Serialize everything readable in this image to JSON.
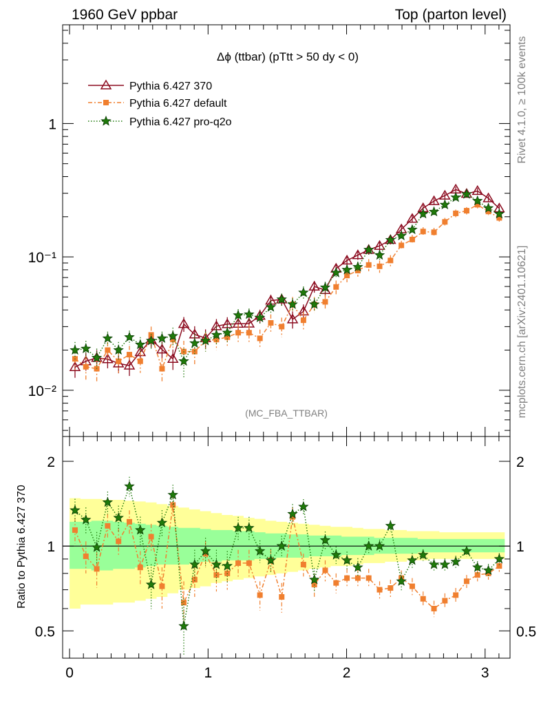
{
  "header": {
    "left": "1960 GeV ppbar",
    "right": "Top (parton level)"
  },
  "side": {
    "top": "Rivet 4.1.0, ≥ 100k events",
    "bottom": "mcplots.cern.ch [arXiv:2401.10621]"
  },
  "colors": {
    "p370": "#8b0a1e",
    "default": "#f07f2f",
    "proq2o": "#1f7a0a",
    "band_outer": "#ffff99",
    "band_inner": "#99ff99"
  },
  "chart_data": {
    "type": "line",
    "title": "Δϕ (ttbar) (pTtt > 50 dy < 0)",
    "watermark": "(MC_FBA_TTBAR)",
    "xlabel": "",
    "ylabel_main": "",
    "ylabel_ratio": "Ratio to Pythia 6.427 370",
    "xlim": [
      -0.05,
      3.18
    ],
    "ylim_main": [
      0.0045,
      5.5
    ],
    "ylim_ratio": [
      0.4,
      2.45
    ],
    "yscale_main": "log",
    "yscale_ratio": "log",
    "xticks": [
      "0",
      "1",
      "2",
      "3"
    ],
    "yticks_main": [
      "10⁻²",
      "10⁻¹",
      "1"
    ],
    "yticks_ratio": [
      "0.5",
      "1",
      "2"
    ],
    "legend": [
      "Pythia 6.427 370",
      "Pythia 6.427 default",
      "Pythia 6.427 pro-q2o"
    ],
    "legend_position": "top-left",
    "x": [
      0.0393,
      0.1178,
      0.1963,
      0.2749,
      0.3534,
      0.432,
      0.5105,
      0.589,
      0.6676,
      0.7461,
      0.8247,
      0.9032,
      0.9817,
      1.0603,
      1.1388,
      1.2174,
      1.2959,
      1.3744,
      1.453,
      1.5315,
      1.6101,
      1.6886,
      1.7671,
      1.8457,
      1.9242,
      2.0028,
      2.0813,
      2.1598,
      2.2384,
      2.3169,
      2.3955,
      2.474,
      2.5525,
      2.6311,
      2.7096,
      2.7882,
      2.8667,
      2.9452,
      3.0238,
      3.1023
    ],
    "series": [
      {
        "name": "Pythia 6.427 370",
        "values": [
          0.0149,
          0.0165,
          0.0175,
          0.0171,
          0.0159,
          0.0153,
          0.0193,
          0.0239,
          0.0202,
          0.0172,
          0.0314,
          0.0262,
          0.0246,
          0.0302,
          0.0313,
          0.0315,
          0.0316,
          0.0362,
          0.047,
          0.048,
          0.034,
          0.039,
          0.0599,
          0.0564,
          0.0817,
          0.094,
          0.103,
          0.113,
          0.121,
          0.134,
          0.161,
          0.193,
          0.232,
          0.262,
          0.288,
          0.32,
          0.297,
          0.312,
          0.275,
          0.231
        ],
        "errors": [
          0.0025,
          0.0025,
          0.0025,
          0.0025,
          0.0025,
          0.0025,
          0.0025,
          0.003,
          0.003,
          0.003,
          0.004,
          0.004,
          0.004,
          0.004,
          0.004,
          0.004,
          0.004,
          0.004,
          0.005,
          0.005,
          0.005,
          0.005,
          0.006,
          0.006,
          0.007,
          0.008,
          0.008,
          0.009,
          0.009,
          0.01,
          0.011,
          0.012,
          0.013,
          0.014,
          0.015,
          0.016,
          0.015,
          0.016,
          0.014,
          0.012
        ]
      },
      {
        "name": "Pythia 6.427 default",
        "values": [
          0.0172,
          0.015,
          0.0145,
          0.02,
          0.0165,
          0.0185,
          0.0165,
          0.026,
          0.0145,
          0.024,
          0.0195,
          0.0195,
          0.0235,
          0.024,
          0.025,
          0.027,
          0.027,
          0.0245,
          0.032,
          0.03,
          0.044,
          0.0335,
          0.044,
          0.046,
          0.0595,
          0.0725,
          0.079,
          0.087,
          0.085,
          0.094,
          0.122,
          0.135,
          0.155,
          0.153,
          0.183,
          0.212,
          0.222,
          0.246,
          0.219,
          0.196
        ],
        "errors": [
          0.003,
          0.003,
          0.003,
          0.003,
          0.003,
          0.003,
          0.003,
          0.004,
          0.003,
          0.004,
          0.004,
          0.004,
          0.004,
          0.004,
          0.004,
          0.004,
          0.004,
          0.004,
          0.005,
          0.005,
          0.006,
          0.005,
          0.006,
          0.006,
          0.007,
          0.008,
          0.008,
          0.009,
          0.009,
          0.009,
          0.01,
          0.011,
          0.012,
          0.012,
          0.013,
          0.014,
          0.014,
          0.015,
          0.013,
          0.012
        ]
      },
      {
        "name": "Pythia 6.427 pro-q2o",
        "values": [
          0.02,
          0.0205,
          0.0175,
          0.0245,
          0.02,
          0.025,
          0.022,
          0.0235,
          0.0245,
          0.0255,
          0.0165,
          0.0225,
          0.0235,
          0.026,
          0.027,
          0.0365,
          0.037,
          0.035,
          0.042,
          0.048,
          0.044,
          0.054,
          0.044,
          0.059,
          0.076,
          0.08,
          0.084,
          0.113,
          0.103,
          0.134,
          0.144,
          0.16,
          0.21,
          0.218,
          0.246,
          0.279,
          0.295,
          0.263,
          0.232,
          0.21
        ],
        "errors": [
          0.003,
          0.003,
          0.003,
          0.003,
          0.003,
          0.003,
          0.003,
          0.003,
          0.003,
          0.004,
          0.004,
          0.004,
          0.004,
          0.004,
          0.004,
          0.004,
          0.004,
          0.004,
          0.005,
          0.005,
          0.005,
          0.006,
          0.005,
          0.006,
          0.007,
          0.007,
          0.008,
          0.009,
          0.009,
          0.01,
          0.01,
          0.011,
          0.012,
          0.012,
          0.013,
          0.014,
          0.015,
          0.014,
          0.012,
          0.011
        ]
      }
    ],
    "ratio_band": {
      "inner_lo": [
        0.83,
        0.83,
        0.82,
        0.82,
        0.83,
        0.83,
        0.84,
        0.85,
        0.86,
        0.86,
        0.86,
        0.87,
        0.88,
        0.88,
        0.89,
        0.89,
        0.89,
        0.9,
        0.9,
        0.91,
        0.91,
        0.91,
        0.92,
        0.92,
        0.92,
        0.93,
        0.93,
        0.93,
        0.94,
        0.94,
        0.94,
        0.94,
        0.95,
        0.95,
        0.95,
        0.95,
        0.95,
        0.95,
        0.95,
        0.95
      ],
      "inner_hi": [
        1.22,
        1.22,
        1.23,
        1.23,
        1.22,
        1.21,
        1.2,
        1.19,
        1.18,
        1.17,
        1.16,
        1.16,
        1.15,
        1.14,
        1.14,
        1.13,
        1.13,
        1.12,
        1.11,
        1.11,
        1.1,
        1.1,
        1.09,
        1.09,
        1.09,
        1.08,
        1.08,
        1.08,
        1.07,
        1.07,
        1.07,
        1.07,
        1.06,
        1.06,
        1.06,
        1.06,
        1.06,
        1.06,
        1.06,
        1.06
      ],
      "outer_lo": [
        0.6,
        0.62,
        0.62,
        0.62,
        0.63,
        0.63,
        0.64,
        0.65,
        0.66,
        0.68,
        0.7,
        0.71,
        0.72,
        0.74,
        0.75,
        0.76,
        0.77,
        0.78,
        0.79,
        0.8,
        0.81,
        0.82,
        0.83,
        0.84,
        0.85,
        0.85,
        0.86,
        0.87,
        0.87,
        0.88,
        0.88,
        0.89,
        0.89,
        0.9,
        0.9,
        0.9,
        0.9,
        0.9,
        0.9,
        0.9
      ],
      "outer_hi": [
        1.48,
        1.47,
        1.47,
        1.46,
        1.46,
        1.45,
        1.44,
        1.43,
        1.41,
        1.39,
        1.37,
        1.35,
        1.33,
        1.31,
        1.29,
        1.28,
        1.26,
        1.25,
        1.23,
        1.22,
        1.21,
        1.2,
        1.19,
        1.18,
        1.17,
        1.17,
        1.16,
        1.15,
        1.15,
        1.14,
        1.14,
        1.13,
        1.13,
        1.13,
        1.12,
        1.12,
        1.12,
        1.12,
        1.12,
        1.12
      ]
    },
    "ratio_series": [
      {
        "name": "Pythia 6.427 default",
        "values": [
          1.14,
          0.92,
          0.83,
          1.18,
          1.04,
          1.22,
          0.84,
          1.08,
          0.72,
          1.4,
          0.63,
          0.76,
          0.94,
          0.79,
          0.8,
          0.87,
          0.87,
          0.67,
          0.89,
          0.66,
          1.27,
          0.86,
          0.73,
          0.82,
          0.74,
          0.77,
          0.77,
          0.77,
          0.7,
          0.71,
          0.77,
          0.72,
          0.65,
          0.6,
          0.64,
          0.67,
          0.75,
          0.79,
          0.8,
          0.85
        ],
        "errors": [
          0.12,
          0.12,
          0.12,
          0.12,
          0.12,
          0.12,
          0.12,
          0.12,
          0.12,
          0.12,
          0.12,
          0.1,
          0.1,
          0.1,
          0.1,
          0.1,
          0.1,
          0.08,
          0.08,
          0.08,
          0.1,
          0.08,
          0.07,
          0.07,
          0.06,
          0.06,
          0.06,
          0.06,
          0.05,
          0.05,
          0.05,
          0.05,
          0.04,
          0.04,
          0.04,
          0.04,
          0.04,
          0.04,
          0.04,
          0.04
        ]
      },
      {
        "name": "Pythia 6.427 pro-q2o",
        "values": [
          1.34,
          1.24,
          0.99,
          1.43,
          1.26,
          1.63,
          1.14,
          0.73,
          1.21,
          1.52,
          0.52,
          0.86,
          0.96,
          0.86,
          0.85,
          1.16,
          1.16,
          0.96,
          0.89,
          1.0,
          1.3,
          1.38,
          0.76,
          1.05,
          0.93,
          0.89,
          0.84,
          1.0,
          1.0,
          1.18,
          0.75,
          0.89,
          0.93,
          0.86,
          0.86,
          0.88,
          0.96,
          0.84,
          0.82,
          0.9
        ]
      }
    ]
  }
}
